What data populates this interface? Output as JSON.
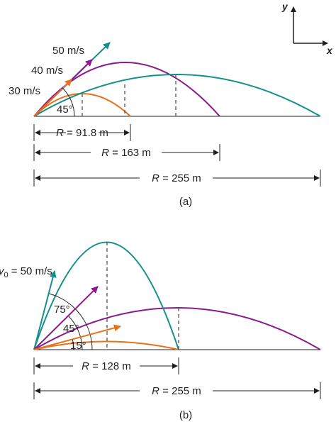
{
  "colors": {
    "v30": "#e8711c",
    "v40": "#8b1a8b",
    "v50": "#15908c",
    "ink": "#231f20",
    "dash": "#555555"
  },
  "axes": {
    "y": "y",
    "x": "x"
  },
  "panel_a": {
    "speeds": [
      {
        "label": "50 m/s",
        "color": "v50"
      },
      {
        "label": "40 m/s",
        "color": "v40"
      },
      {
        "label": "30 m/s",
        "color": "v30"
      }
    ],
    "angle": "45°",
    "ranges": [
      {
        "sym": "R",
        "text": " = 91.8 m"
      },
      {
        "sym": "R",
        "text": " = 163 m"
      },
      {
        "sym": "R",
        "text": " = 255 m"
      }
    ],
    "caption": "(a)"
  },
  "panel_b": {
    "speed": {
      "sym": "v",
      "sub": "0",
      "text": " = 50 m/s"
    },
    "angles": [
      "75°",
      "45°",
      "15°"
    ],
    "ranges": [
      {
        "sym": "R",
        "text": " = 128 m"
      },
      {
        "sym": "R",
        "text": " = 255 m"
      }
    ],
    "caption": "(b)"
  }
}
